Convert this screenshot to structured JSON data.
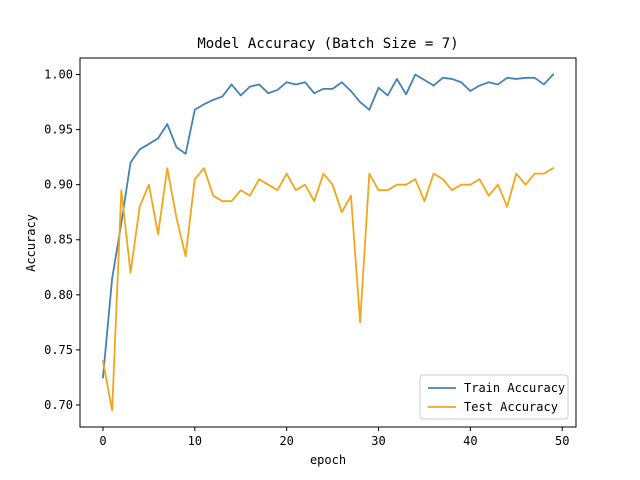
{
  "chart_data": {
    "type": "line",
    "title": "Model Accuracy (Batch Size = 7)",
    "xlabel": "epoch",
    "ylabel": "Accuracy",
    "xlim": [
      -2.5,
      51.5
    ],
    "ylim": [
      0.68,
      1.015
    ],
    "xticks": [
      0,
      10,
      20,
      30,
      40,
      50
    ],
    "yticks": [
      0.7,
      0.75,
      0.8,
      0.85,
      0.9,
      0.95,
      1.0
    ],
    "ytick_labels": [
      "0.70",
      "0.75",
      "0.80",
      "0.85",
      "0.90",
      "0.95",
      "1.00"
    ],
    "grid": false,
    "legend_position": "lower-right",
    "x": [
      0,
      1,
      2,
      3,
      4,
      5,
      6,
      7,
      8,
      9,
      10,
      11,
      12,
      13,
      14,
      15,
      16,
      17,
      18,
      19,
      20,
      21,
      22,
      23,
      24,
      25,
      26,
      27,
      28,
      29,
      30,
      31,
      32,
      33,
      34,
      35,
      36,
      37,
      38,
      39,
      40,
      41,
      42,
      43,
      44,
      45,
      46,
      47,
      48,
      49
    ],
    "series": [
      {
        "name": "Train Accuracy",
        "color": "#4682b4",
        "values": [
          0.725,
          0.815,
          0.865,
          0.92,
          0.932,
          0.937,
          0.942,
          0.955,
          0.934,
          0.928,
          0.968,
          0.973,
          0.977,
          0.98,
          0.991,
          0.981,
          0.989,
          0.991,
          0.983,
          0.986,
          0.993,
          0.991,
          0.993,
          0.983,
          0.987,
          0.987,
          0.993,
          0.985,
          0.975,
          0.968,
          0.988,
          0.981,
          0.996,
          0.982,
          1.0,
          0.995,
          0.99,
          0.997,
          0.996,
          0.993,
          0.985,
          0.99,
          0.993,
          0.991,
          0.997,
          0.996,
          0.997,
          0.997,
          0.991,
          1.0
        ]
      },
      {
        "name": "Test Accuracy",
        "color": "#f2a61c",
        "values": [
          0.74,
          0.695,
          0.895,
          0.82,
          0.88,
          0.9,
          0.855,
          0.915,
          0.87,
          0.835,
          0.905,
          0.915,
          0.89,
          0.885,
          0.885,
          0.895,
          0.89,
          0.905,
          0.9,
          0.895,
          0.91,
          0.895,
          0.9,
          0.885,
          0.91,
          0.9,
          0.875,
          0.89,
          0.775,
          0.91,
          0.895,
          0.895,
          0.9,
          0.9,
          0.905,
          0.885,
          0.91,
          0.905,
          0.895,
          0.9,
          0.9,
          0.905,
          0.89,
          0.9,
          0.88,
          0.91,
          0.9,
          0.91,
          0.91,
          0.915
        ]
      }
    ]
  }
}
